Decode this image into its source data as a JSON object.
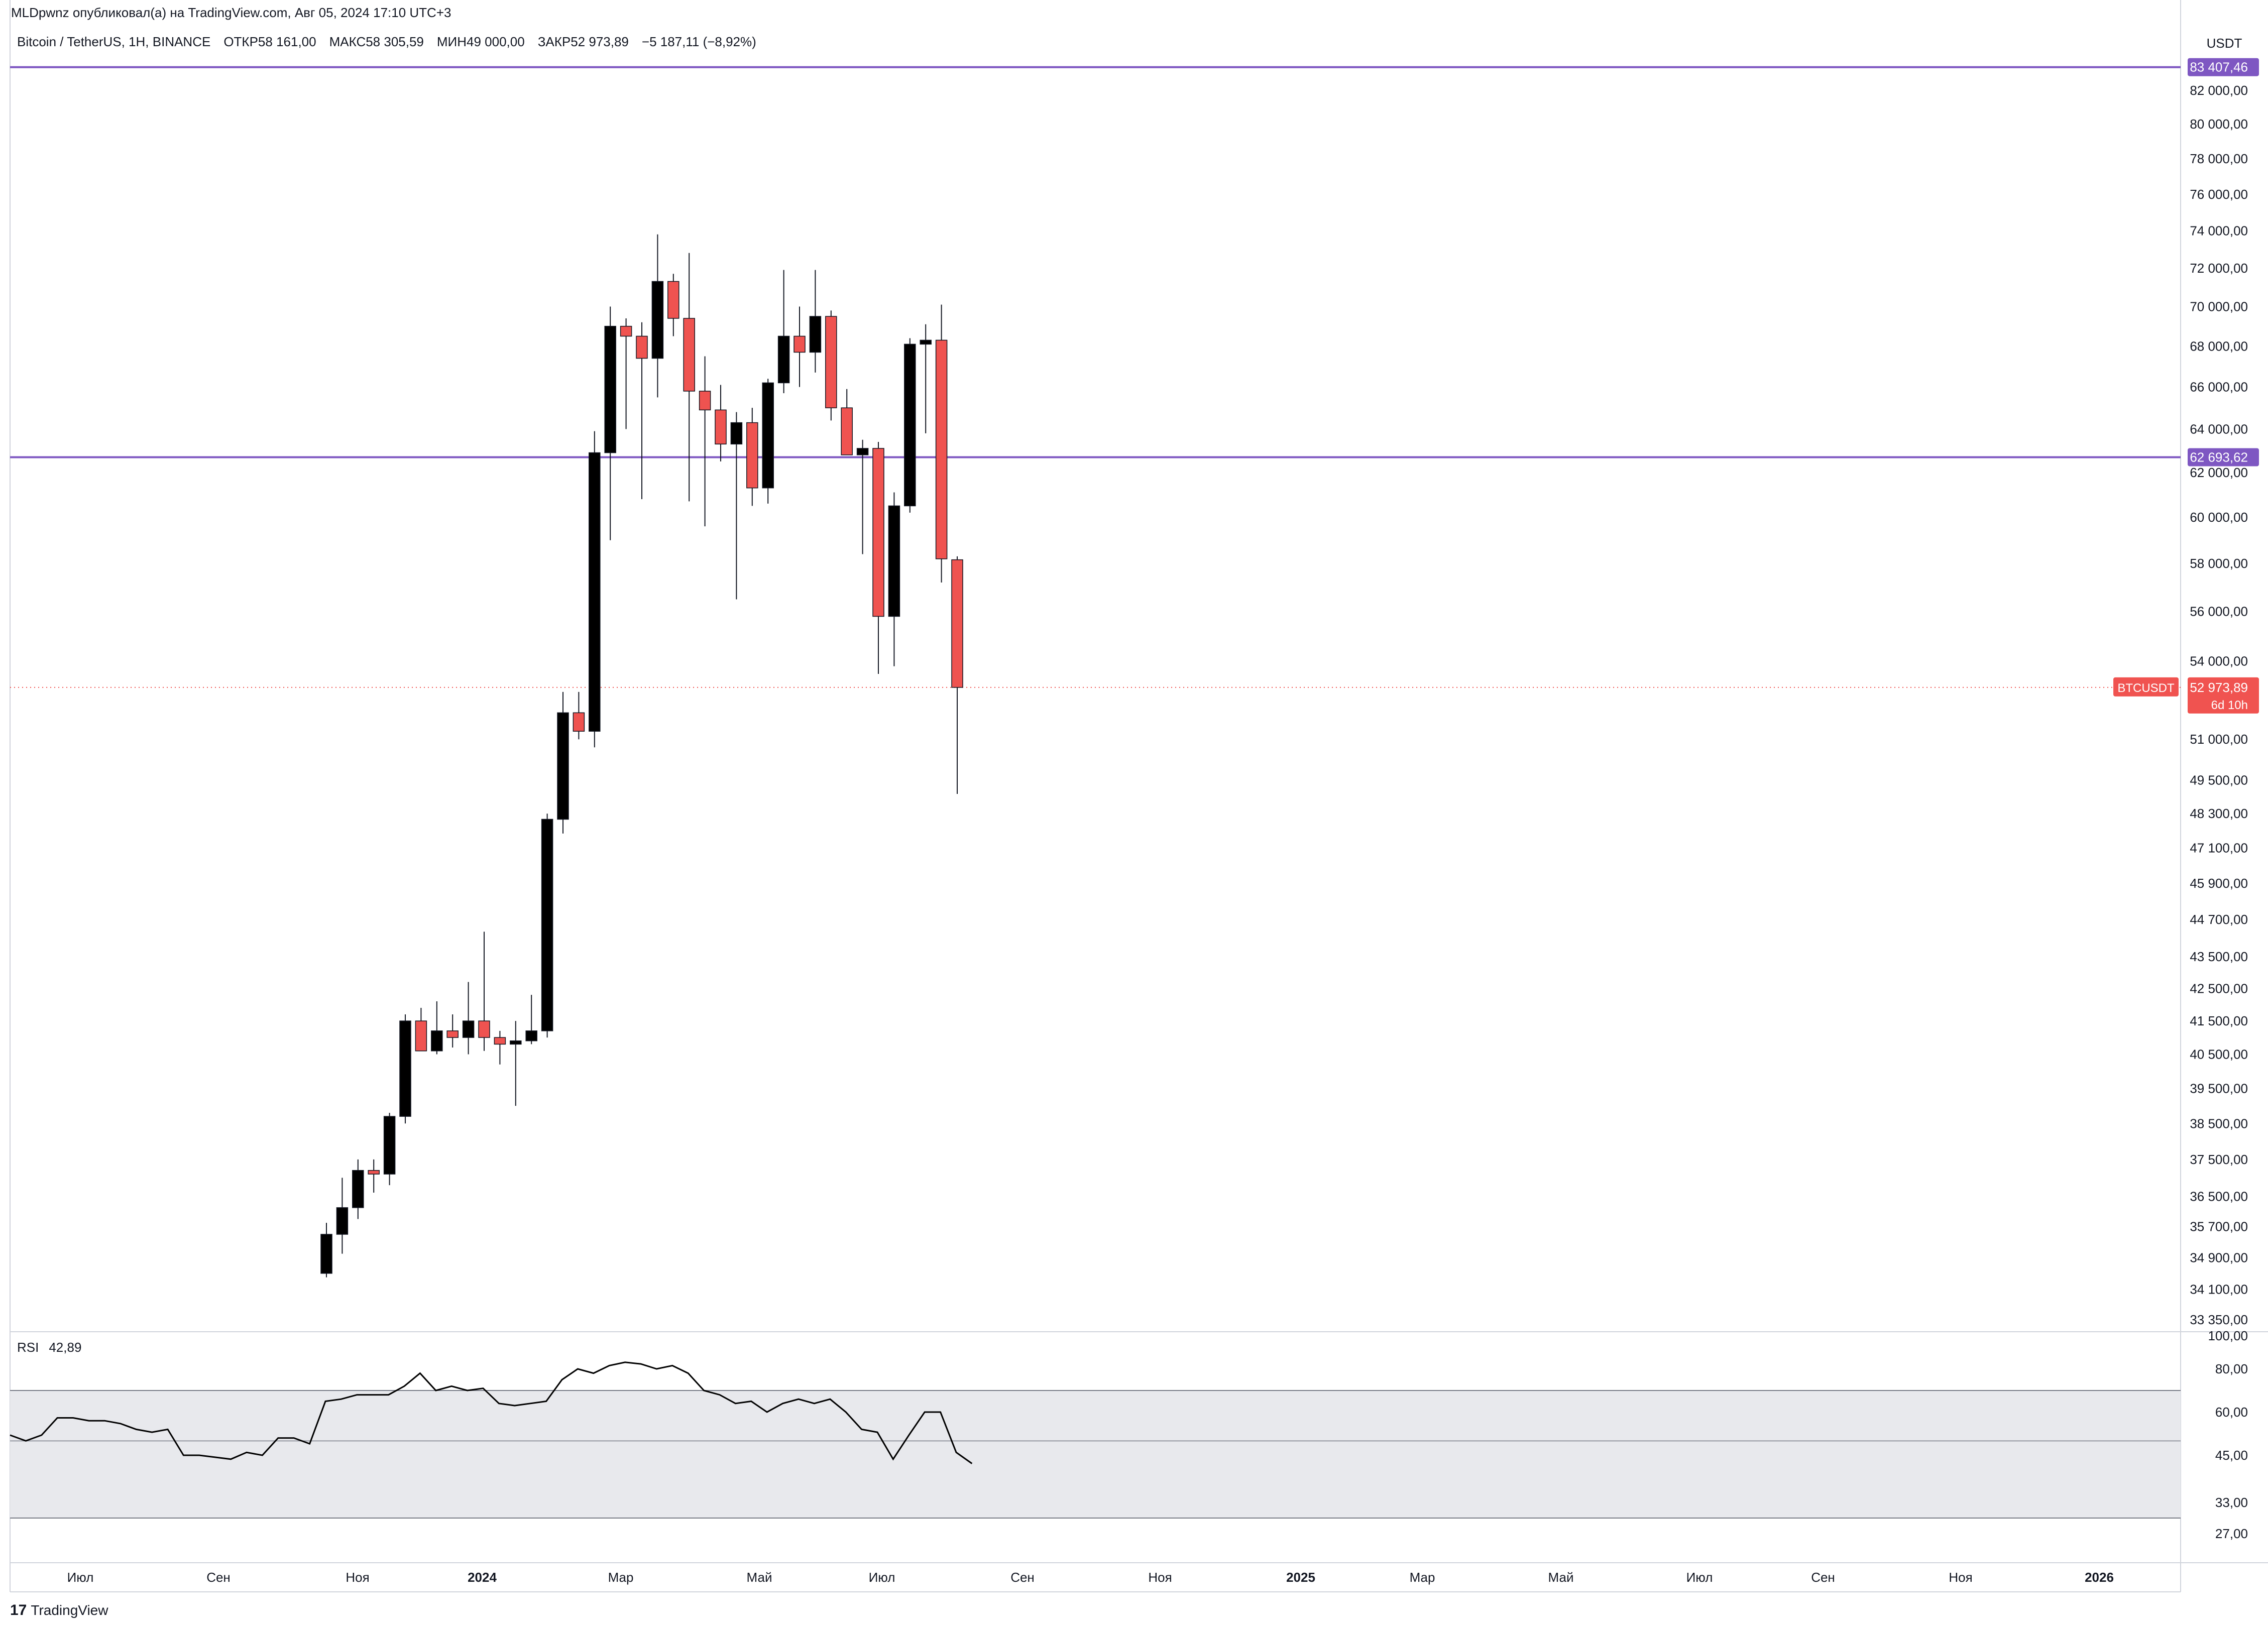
{
  "header": {
    "credit": "MLDpwnz опубликовал(а) на TradingView.com, Авг 05, 2024 17:10 UTC+3",
    "symbol": "Bitcoin / TetherUS, 1H, BINANCE",
    "open": "ОТКР58 161,00",
    "high": "МАКС58 305,59",
    "low": "МИН49 000,00",
    "close": "ЗАКР52 973,89",
    "change": "−5 187,11 (−8,92%)"
  },
  "price_axis": {
    "currency": "USDT",
    "ticks": [
      "82 000,00",
      "80 000,00",
      "78 000,00",
      "76 000,00",
      "74 000,00",
      "72 000,00",
      "70 000,00",
      "68 000,00",
      "66 000,00",
      "64 000,00",
      "62 000,00",
      "60 000,00",
      "58 000,00",
      "56 000,00",
      "54 000,00",
      "51 000,00",
      "49 500,00",
      "48 300,00",
      "47 100,00",
      "45 900,00",
      "44 700,00",
      "43 500,00",
      "42 500,00",
      "41 500,00",
      "40 500,00",
      "39 500,00",
      "38 500,00",
      "37 500,00",
      "36 500,00",
      "35 700,00",
      "34 900,00",
      "34 100,00",
      "33 350,00"
    ],
    "log_scale": true
  },
  "levels": [
    {
      "price": 83407.46,
      "label": "83 407,46",
      "color": "#7e57c2"
    },
    {
      "price": 62693.62,
      "label": "62 693,62",
      "color": "#7e57c2"
    }
  ],
  "current_price": {
    "symbol_tag": "BTCUSDT",
    "price": 52973.89,
    "label": "52 973,89",
    "countdown": "6d 10h",
    "color": "#f05350"
  },
  "rsi": {
    "label": "RSI",
    "value": "42,89",
    "ticks": [
      "100,00",
      "80,00",
      "60,00",
      "45,00",
      "33,00",
      "27,00"
    ],
    "band_upper": 70,
    "band_mid": 50,
    "band_lower": 30
  },
  "time_axis": {
    "labels": [
      {
        "text": "Июл",
        "bold": false
      },
      {
        "text": "Сен",
        "bold": false
      },
      {
        "text": "Ноя",
        "bold": false
      },
      {
        "text": "2024",
        "bold": true
      },
      {
        "text": "Мар",
        "bold": false
      },
      {
        "text": "Май",
        "bold": false
      },
      {
        "text": "Июл",
        "bold": false
      },
      {
        "text": "Сен",
        "bold": false
      },
      {
        "text": "Ноя",
        "bold": false
      },
      {
        "text": "2025",
        "bold": true
      },
      {
        "text": "Мар",
        "bold": false
      },
      {
        "text": "Май",
        "bold": false
      },
      {
        "text": "Июл",
        "bold": false
      },
      {
        "text": "Сен",
        "bold": false
      },
      {
        "text": "Ноя",
        "bold": false
      },
      {
        "text": "2026",
        "bold": true
      }
    ]
  },
  "footer": {
    "logo_mark": "17",
    "brand": "TradingView"
  },
  "colors": {
    "up": "#000000",
    "down": "#ef5350",
    "grid": "#e0e3eb",
    "rsi_band": "#e8e9ed",
    "rsi_line": "#000000"
  },
  "chart_data": {
    "type": "candlestick",
    "x_unit": "week",
    "candles": [
      [
        34500,
        35800,
        34400,
        35500
      ],
      [
        35500,
        37000,
        35000,
        36200
      ],
      [
        36200,
        37500,
        35900,
        37200
      ],
      [
        37200,
        37500,
        36600,
        37100
      ],
      [
        37100,
        38800,
        36800,
        38700
      ],
      [
        38700,
        41700,
        38500,
        41500
      ],
      [
        41500,
        41900,
        40600,
        40600
      ],
      [
        40600,
        42100,
        40500,
        41200
      ],
      [
        41200,
        41700,
        40700,
        41000
      ],
      [
        41000,
        42700,
        40500,
        41500
      ],
      [
        41500,
        44300,
        40600,
        41000
      ],
      [
        41000,
        41200,
        40200,
        40800
      ],
      [
        40800,
        41500,
        39000,
        40900
      ],
      [
        40900,
        42300,
        40800,
        41200
      ],
      [
        41200,
        48300,
        41000,
        48100
      ],
      [
        48100,
        52800,
        47600,
        52000
      ],
      [
        52000,
        52800,
        51000,
        51300
      ],
      [
        51300,
        63900,
        50700,
        62900
      ],
      [
        62900,
        70000,
        59000,
        69000
      ],
      [
        69000,
        69400,
        64000,
        68500
      ],
      [
        68500,
        69200,
        60800,
        67400
      ],
      [
        67400,
        73800,
        65500,
        71300
      ],
      [
        71300,
        71700,
        68500,
        69400
      ],
      [
        69400,
        72800,
        60700,
        65800
      ],
      [
        65800,
        67500,
        59600,
        64900
      ],
      [
        64900,
        66100,
        62500,
        63300
      ],
      [
        63300,
        64800,
        56500,
        64300
      ],
      [
        64300,
        65000,
        60500,
        61300
      ],
      [
        61300,
        66400,
        60600,
        66200
      ],
      [
        66200,
        71900,
        65700,
        68500
      ],
      [
        68500,
        70000,
        66000,
        67700
      ],
      [
        67700,
        71900,
        66700,
        69500
      ],
      [
        69500,
        69800,
        64400,
        65000
      ],
      [
        65000,
        65900,
        62800,
        62800
      ],
      [
        62800,
        63500,
        58400,
        63100
      ],
      [
        63100,
        63400,
        53500,
        55800
      ],
      [
        55800,
        61100,
        53800,
        60500
      ],
      [
        60500,
        68400,
        60200,
        68100
      ],
      [
        68100,
        69100,
        63800,
        68300
      ],
      [
        68300,
        70100,
        57200,
        58200
      ],
      [
        58161,
        58305.59,
        49000,
        52973.89
      ]
    ],
    "rsi": [
      52,
      50,
      52,
      58,
      58,
      57,
      57,
      56,
      54,
      53,
      54,
      45,
      45,
      44.5,
      44,
      46,
      45,
      51,
      51,
      49,
      65,
      66,
      68,
      68,
      68,
      72,
      78,
      70,
      72,
      70,
      71,
      64,
      63,
      64,
      65,
      75,
      80,
      78,
      82,
      84,
      83,
      80,
      82,
      78,
      70,
      68,
      64,
      65,
      60,
      64,
      66,
      64,
      66,
      60,
      54,
      53,
      44,
      52,
      60,
      60,
      46,
      42.89
    ]
  }
}
